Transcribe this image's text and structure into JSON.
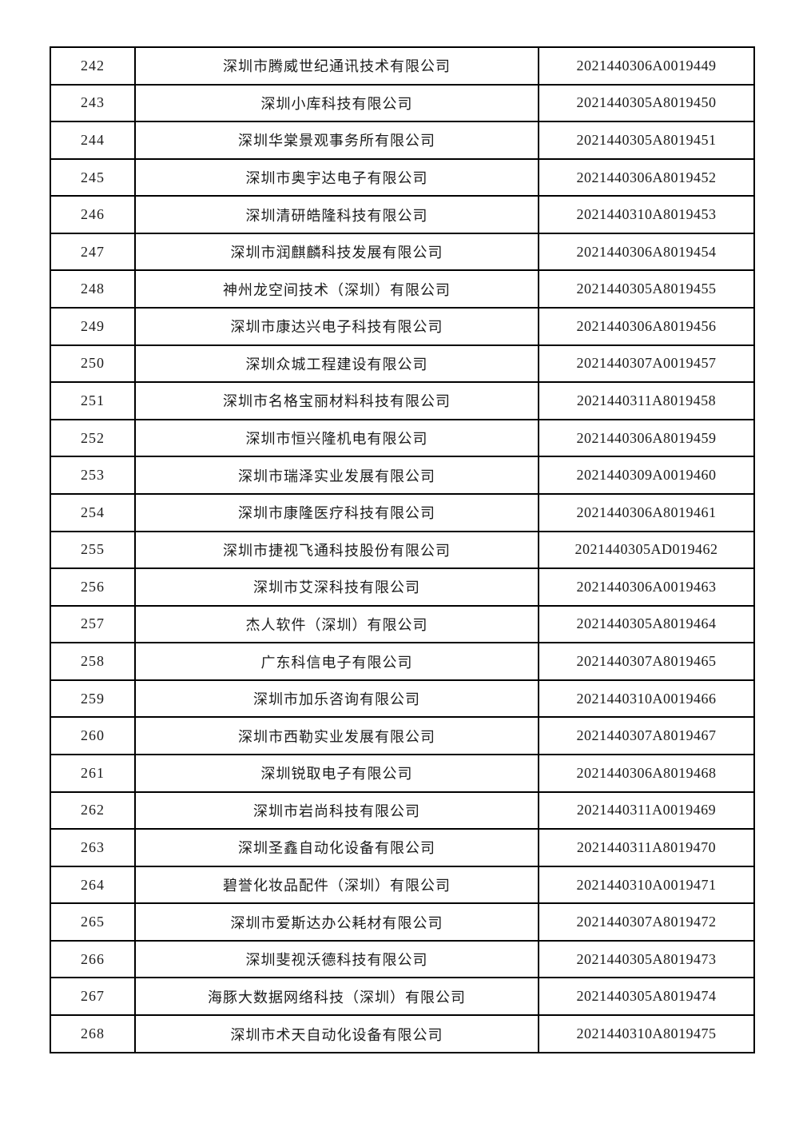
{
  "table": {
    "rows": [
      {
        "no": "242",
        "company": "深圳市腾威世纪通讯技术有限公司",
        "code": "2021440306A0019449"
      },
      {
        "no": "243",
        "company": "深圳小库科技有限公司",
        "code": "2021440305A8019450"
      },
      {
        "no": "244",
        "company": "深圳华棠景观事务所有限公司",
        "code": "2021440305A8019451"
      },
      {
        "no": "245",
        "company": "深圳市奥宇达电子有限公司",
        "code": "2021440306A8019452"
      },
      {
        "no": "246",
        "company": "深圳清研皓隆科技有限公司",
        "code": "2021440310A8019453"
      },
      {
        "no": "247",
        "company": "深圳市润麒麟科技发展有限公司",
        "code": "2021440306A8019454"
      },
      {
        "no": "248",
        "company": "神州龙空间技术（深圳）有限公司",
        "code": "2021440305A8019455"
      },
      {
        "no": "249",
        "company": "深圳市康达兴电子科技有限公司",
        "code": "2021440306A8019456"
      },
      {
        "no": "250",
        "company": "深圳众城工程建设有限公司",
        "code": "2021440307A0019457"
      },
      {
        "no": "251",
        "company": "深圳市名格宝丽材料科技有限公司",
        "code": "2021440311A8019458"
      },
      {
        "no": "252",
        "company": "深圳市恒兴隆机电有限公司",
        "code": "2021440306A8019459"
      },
      {
        "no": "253",
        "company": "深圳市瑞泽实业发展有限公司",
        "code": "2021440309A0019460"
      },
      {
        "no": "254",
        "company": "深圳市康隆医疗科技有限公司",
        "code": "2021440306A8019461"
      },
      {
        "no": "255",
        "company": "深圳市捷视飞通科技股份有限公司",
        "code": "2021440305AD019462"
      },
      {
        "no": "256",
        "company": "深圳市艾深科技有限公司",
        "code": "2021440306A0019463"
      },
      {
        "no": "257",
        "company": "杰人软件（深圳）有限公司",
        "code": "2021440305A8019464"
      },
      {
        "no": "258",
        "company": "广东科信电子有限公司",
        "code": "2021440307A8019465"
      },
      {
        "no": "259",
        "company": "深圳市加乐咨询有限公司",
        "code": "2021440310A0019466"
      },
      {
        "no": "260",
        "company": "深圳市西勒实业发展有限公司",
        "code": "2021440307A8019467"
      },
      {
        "no": "261",
        "company": "深圳锐取电子有限公司",
        "code": "2021440306A8019468"
      },
      {
        "no": "262",
        "company": "深圳市岩尚科技有限公司",
        "code": "2021440311A0019469"
      },
      {
        "no": "263",
        "company": "深圳圣鑫自动化设备有限公司",
        "code": "2021440311A8019470"
      },
      {
        "no": "264",
        "company": "碧誉化妆品配件（深圳）有限公司",
        "code": "2021440310A0019471"
      },
      {
        "no": "265",
        "company": "深圳市爱斯达办公耗材有限公司",
        "code": "2021440307A8019472"
      },
      {
        "no": "266",
        "company": "深圳斐视沃德科技有限公司",
        "code": "2021440305A8019473"
      },
      {
        "no": "267",
        "company": "海豚大数据网络科技（深圳）有限公司",
        "code": "2021440305A8019474"
      },
      {
        "no": "268",
        "company": "深圳市术天自动化设备有限公司",
        "code": "2021440310A8019475"
      }
    ]
  }
}
